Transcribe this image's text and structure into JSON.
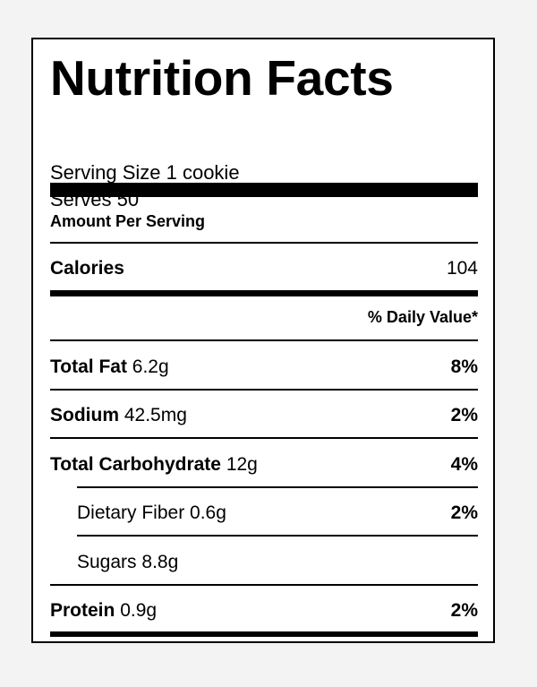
{
  "title": "Nutrition Facts",
  "serving_size": "Serving Size 1 cookie",
  "serves": "Serves 50",
  "amount_per_serving": "Amount Per Serving",
  "calories": {
    "label": "Calories",
    "value": "104"
  },
  "daily_value_header": "% Daily Value*",
  "nutrients": [
    {
      "name": "Total Fat",
      "amount": "6.2g",
      "dv": "8%"
    },
    {
      "name": "Sodium",
      "amount": "42.5mg",
      "dv": "2%"
    },
    {
      "name": "Total Carbohydrate",
      "amount": "12g",
      "dv": "4%"
    },
    {
      "name": "Dietary Fiber",
      "amount": "0.6g",
      "dv": "2%"
    },
    {
      "name": "Sugars",
      "amount": "8.8g",
      "dv": ""
    },
    {
      "name": "Protein",
      "amount": "0.9g",
      "dv": "2%"
    }
  ]
}
